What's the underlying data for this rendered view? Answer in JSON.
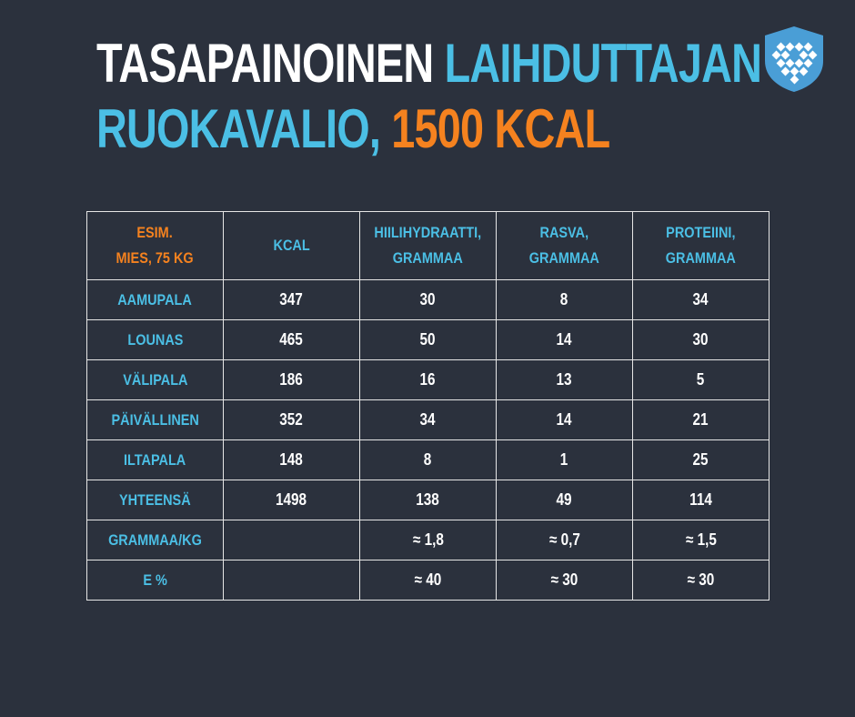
{
  "title": {
    "part1": "TASAPAINOINEN",
    "part2": "LAIHDUTTAJAN",
    "part3": "RUOKAVALIO,",
    "part4": "1500 KCAL"
  },
  "colors": {
    "background": "#2b313d",
    "accent_blue": "#4bbfe5",
    "accent_orange": "#f5821f",
    "text_white": "#ffffff"
  },
  "logo": {
    "icon": "shield-heart-icon"
  },
  "table": {
    "corner_line1": "ESIM.",
    "corner_line2": "MIES, 75 KG",
    "headers": [
      {
        "line1": "KCAL",
        "line2": ""
      },
      {
        "line1": "HIILIHYDRAATTI,",
        "line2": "GRAMMAA"
      },
      {
        "line1": "RASVA,",
        "line2": "GRAMMAA"
      },
      {
        "line1": "PROTEIINI,",
        "line2": "GRAMMAA"
      }
    ],
    "rows": [
      {
        "label": "AAMUPALA",
        "kcal": "347",
        "carbs": "30",
        "fat": "8",
        "protein": "34"
      },
      {
        "label": "LOUNAS",
        "kcal": "465",
        "carbs": "50",
        "fat": "14",
        "protein": "30"
      },
      {
        "label": "VÄLIPALA",
        "kcal": "186",
        "carbs": "16",
        "fat": "13",
        "protein": "5"
      },
      {
        "label": "PÄIVÄLLINEN",
        "kcal": "352",
        "carbs": "34",
        "fat": "14",
        "protein": "21"
      },
      {
        "label": "ILTAPALA",
        "kcal": "148",
        "carbs": "8",
        "fat": "1",
        "protein": "25"
      },
      {
        "label": "YHTEENSÄ",
        "kcal": "1498",
        "carbs": "138",
        "fat": "49",
        "protein": "114"
      },
      {
        "label": "GRAMMAA/KG",
        "kcal": "",
        "carbs": "≈ 1,8",
        "fat": "≈ 0,7",
        "protein": "≈ 1,5"
      },
      {
        "label": "E %",
        "kcal": "",
        "carbs": "≈ 40",
        "fat": "≈ 30",
        "protein": "≈ 30"
      }
    ]
  }
}
